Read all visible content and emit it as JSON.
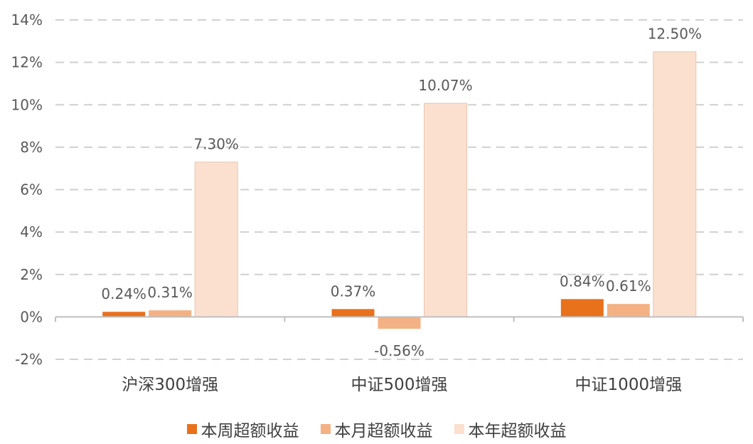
{
  "chart_data": {
    "type": "bar",
    "categories": [
      "沪深300增强",
      "中证500增强",
      "中证1000增强"
    ],
    "series": [
      {
        "name": "本周超额收益",
        "values": [
          0.24,
          0.37,
          0.84
        ],
        "labels": [
          "0.24%",
          "0.37%",
          "0.84%"
        ],
        "color": "#E8711C"
      },
      {
        "name": "本月超额收益",
        "values": [
          0.31,
          -0.56,
          0.61
        ],
        "labels": [
          "0.31%",
          "-0.56%",
          "0.61%"
        ],
        "color": "#F4B183"
      },
      {
        "name": "本年超额收益",
        "values": [
          7.3,
          10.07,
          12.5
        ],
        "labels": [
          "7.30%",
          "10.07%",
          "12.50%"
        ],
        "color": "#FBE0D0"
      }
    ],
    "ylim": [
      -2,
      14
    ],
    "yticks": [
      "14%",
      "12%",
      "10%",
      "8%",
      "6%",
      "4%",
      "2%",
      "0%",
      "-2%"
    ],
    "ytick_values": [
      14,
      12,
      10,
      8,
      6,
      4,
      2,
      0,
      -2
    ],
    "grid": true,
    "legend_position": "bottom"
  }
}
